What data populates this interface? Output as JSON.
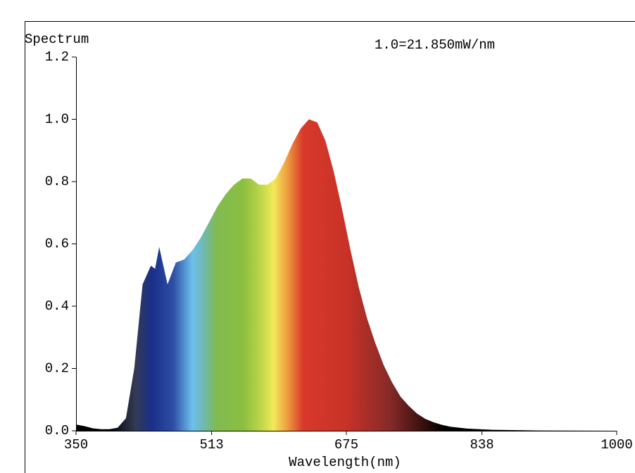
{
  "chart_data": {
    "type": "area",
    "y_label": "Spectrum",
    "annotation": "1.0=21.850mW/nm",
    "x_label": "Wavelength(nm)",
    "x": [
      350,
      360,
      370,
      380,
      390,
      400,
      410,
      420,
      430,
      440,
      445,
      450,
      460,
      470,
      480,
      490,
      500,
      510,
      520,
      530,
      540,
      550,
      560,
      570,
      580,
      590,
      600,
      610,
      620,
      630,
      640,
      650,
      660,
      670,
      680,
      690,
      700,
      710,
      720,
      730,
      740,
      750,
      760,
      770,
      780,
      790,
      800,
      820,
      850,
      900,
      1000
    ],
    "values": [
      0.02,
      0.015,
      0.008,
      0.005,
      0.005,
      0.01,
      0.04,
      0.2,
      0.47,
      0.53,
      0.52,
      0.59,
      0.47,
      0.54,
      0.55,
      0.58,
      0.62,
      0.67,
      0.72,
      0.76,
      0.79,
      0.81,
      0.81,
      0.79,
      0.79,
      0.81,
      0.86,
      0.92,
      0.97,
      1.0,
      0.99,
      0.93,
      0.83,
      0.71,
      0.58,
      0.46,
      0.36,
      0.28,
      0.21,
      0.155,
      0.11,
      0.08,
      0.055,
      0.038,
      0.027,
      0.019,
      0.013,
      0.007,
      0.003,
      0.001,
      0
    ],
    "xlim": [
      350,
      1000
    ],
    "xticks": [
      350,
      513,
      675,
      838,
      1000
    ],
    "ylim": [
      0,
      1.2
    ],
    "yticks": [
      {
        "value": 0,
        "label": "0.0"
      },
      0.2,
      0.4,
      0.6,
      0.8,
      {
        "value": 1,
        "label": "1.0"
      },
      1.2
    ]
  }
}
